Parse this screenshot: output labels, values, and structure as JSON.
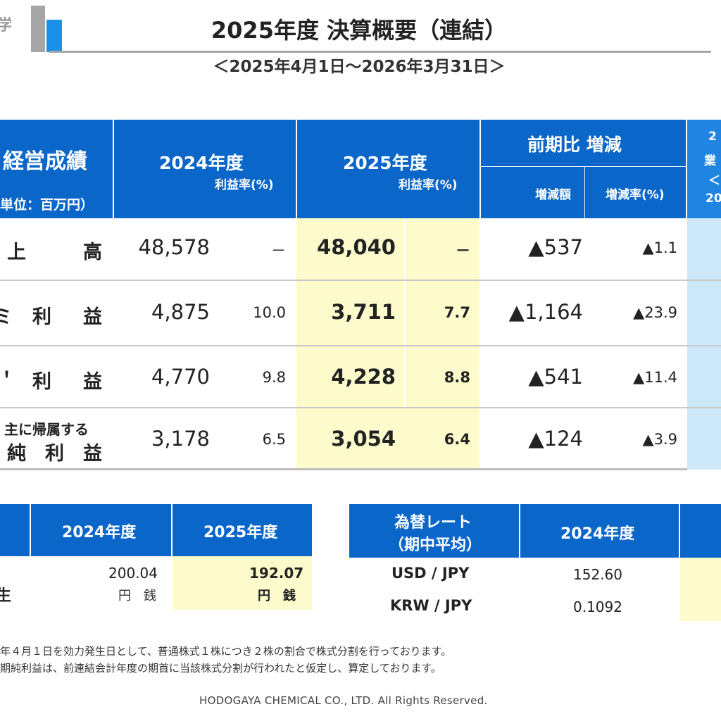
{
  "header": {
    "logo_fragment": "学",
    "title": "2025年度 決算概要（連結）",
    "period": "＜2025年4月1日～2026年3月31日＞"
  },
  "results_table": {
    "section_label": "経営成績",
    "unit_label": "単位：百万円）",
    "col_fy2024": "2024年度",
    "col_fy2025": "2025年度",
    "profit_rate_label": "利益率(%)",
    "col_yoy": "前期比 増減",
    "col_change_amount": "増減額",
    "col_change_rate": "増減率(%)",
    "col_partial_top": "2",
    "col_partial_mid": "業",
    "col_partial_low": "＜",
    "col_partial_bottom": "20",
    "rows": [
      {
        "label_a": "上",
        "label_b": "高",
        "fy2024": "48,578",
        "rate2024": "－",
        "fy2025": "48,040",
        "rate2025": "－",
        "change": "▲537",
        "change_rate": "▲1.1"
      },
      {
        "label_a": "利",
        "label_b": "益",
        "label_frag": "ミ",
        "fy2024": "4,875",
        "rate2024": "10.0",
        "fy2025": "3,711",
        "rate2025": "7.7",
        "change": "▲1,164",
        "change_rate": "▲23.9"
      },
      {
        "label_a": "利",
        "label_b": "益",
        "label_frag": "＇",
        "fy2024": "4,770",
        "rate2024": "9.8",
        "fy2025": "4,228",
        "rate2025": "8.8",
        "change": "▲541",
        "change_rate": "▲11.4"
      },
      {
        "label_top": "主に帰属する",
        "label_a": "純",
        "label_mid": "利",
        "label_b": "益",
        "fy2024": "3,178",
        "rate2024": "6.5",
        "fy2025": "3,054",
        "rate2025": "6.4",
        "change": "▲124",
        "change_rate": "▲3.9"
      }
    ]
  },
  "dividend_table": {
    "col_fy2024": "2024年度",
    "col_fy2025": "2025年度",
    "row_label_frag": "生",
    "fy2024_value": "200.04",
    "fy2024_unit": "円　銭",
    "fy2025_value": "192.07",
    "fy2025_unit": "円　銭"
  },
  "fx_table": {
    "header_line1": "為替レート",
    "header_line2": "（期中平均）",
    "col_fy2024": "2024年度",
    "rows": [
      {
        "pair": "USD / JPY",
        "fy2024": "152.60"
      },
      {
        "pair": "KRW / JPY",
        "fy2024": "0.1092"
      }
    ]
  },
  "notes": [
    "年４月１日を効力発生日として、普通株式１株につき２株の割合で株式分割を行っております。",
    "期純利益は、前連結会計年度の期首に当該株式分割が行われたと仮定し、算定しております。"
  ],
  "footer": "HODOGAYA CHEMICAL CO., LTD. All Rights Reserved.",
  "colors": {
    "header_blue": "#0a66c8",
    "highlight_yellow": "#fdfbcc",
    "highlight_blue": "#cde8f8"
  }
}
